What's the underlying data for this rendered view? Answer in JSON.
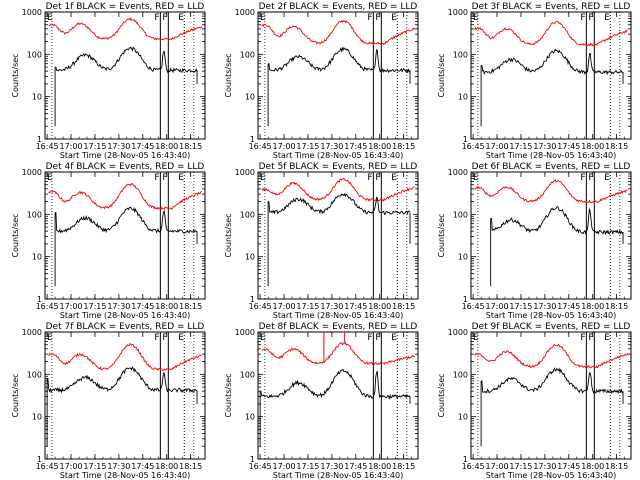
{
  "chart_data": [
    {
      "type": "line",
      "title": "Det 1f BLACK = Events, RED = LLD",
      "xlabel": "Start Time (28-Nov-05 16:43:40)",
      "ylabel": "Counts/sec",
      "yscale": "log",
      "ylim": [
        1,
        1000
      ],
      "ytick_labels": [
        "1",
        "10",
        "100",
        "1000"
      ],
      "xlim": [
        "16:43:40",
        "18:24:00"
      ],
      "xtick_labels": [
        "16:45",
        "17:00",
        "17:15",
        "17:30",
        "17:45",
        "18:00",
        "18:15"
      ],
      "series_colors": [
        "#000000",
        "#ff0000"
      ],
      "grid": false,
      "markers": [
        {
          "label": "F",
          "time": "17:56",
          "style": "solid"
        },
        {
          "label": "F",
          "time": "18:01",
          "style": "solid"
        },
        {
          "label": "E",
          "time": "18:11",
          "style": "dotted"
        }
      ],
      "dotted_lines": [
        "16:48",
        "18:17"
      ],
      "events_start": "16:50",
      "events_end": "18:19",
      "events": {
        "base": 62,
        "baseline": 42,
        "hump1": [
          17.15,
          45
        ],
        "hump2": [
          17.62,
          65
        ],
        "spike": [
          17.97,
          80
        ],
        "start": 50
      },
      "lld": {
        "base": 260,
        "baseline": 230,
        "peak_start": 500,
        "hump1": [
          17.1,
          250
        ],
        "hump2": [
          17.62,
          300
        ],
        "end_rise": 400
      }
    },
    {
      "type": "line",
      "title": "Det 2f BLACK = Events, RED = LLD",
      "xlabel": "Start Time (28-Nov-05 16:43:40)",
      "ylabel": "Counts/sec",
      "yscale": "log",
      "ylim": [
        1,
        1000
      ],
      "ytick_labels": [
        "1",
        "10",
        "100",
        "1000"
      ],
      "xlim": [
        "16:43:40",
        "18:24:00"
      ],
      "xtick_labels": [
        "16:45",
        "17:00",
        "17:15",
        "17:30",
        "17:45",
        "18:00",
        "18:15"
      ],
      "series_colors": [
        "#000000",
        "#ff0000"
      ],
      "grid": false,
      "markers": [
        {
          "label": "F",
          "time": "17:56",
          "style": "solid"
        },
        {
          "label": "F",
          "time": "18:01",
          "style": "solid"
        },
        {
          "label": "E",
          "time": "18:11",
          "style": "dotted"
        }
      ],
      "dotted_lines": [
        "16:48",
        "18:17"
      ],
      "events_start": "16:50",
      "events_end": "18:19",
      "events": {
        "base": 52,
        "baseline": 42,
        "hump1": [
          17.15,
          38
        ],
        "hump2": [
          17.62,
          60
        ],
        "spike": [
          17.97,
          90
        ],
        "start": 60
      },
      "lld": {
        "base": 200,
        "baseline": 180,
        "peak_start": 500,
        "hump1": [
          17.1,
          230
        ],
        "hump2": [
          17.62,
          290
        ],
        "end_rise": 360
      }
    },
    {
      "type": "line",
      "title": "Det 3f BLACK = Events, RED = LLD",
      "xlabel": "Start Time (28-Nov-05 16:43:40)",
      "ylabel": "Counts/sec",
      "yscale": "log",
      "ylim": [
        1,
        1000
      ],
      "ytick_labels": [
        "1",
        "10",
        "100",
        "1000"
      ],
      "xlim": [
        "16:43:40",
        "18:24:00"
      ],
      "xtick_labels": [
        "16:45",
        "17:00",
        "17:15",
        "17:30",
        "17:45",
        "18:00",
        "18:15"
      ],
      "series_colors": [
        "#000000",
        "#ff0000"
      ],
      "grid": false,
      "markers": [
        {
          "label": "F",
          "time": "17:56",
          "style": "solid"
        },
        {
          "label": "F",
          "time": "18:01",
          "style": "solid"
        },
        {
          "label": "E",
          "time": "18:11",
          "style": "dotted"
        }
      ],
      "dotted_lines": [
        "16:48",
        "18:17"
      ],
      "events_start": "16:50",
      "events_end": "18:19",
      "events": {
        "base": 50,
        "baseline": 38,
        "hump1": [
          17.15,
          32
        ],
        "hump2": [
          17.62,
          55
        ],
        "spike": [
          17.97,
          65
        ],
        "start": 55
      },
      "lld": {
        "base": 200,
        "baseline": 170,
        "peak_start": 420,
        "hump1": [
          17.1,
          200
        ],
        "hump2": [
          17.62,
          270
        ],
        "end_rise": 320
      }
    },
    {
      "type": "line",
      "title": "Det 4f BLACK = Events, RED = LLD",
      "xlabel": "Start Time (28-Nov-05 16:43:40)",
      "ylabel": "Counts/sec",
      "yscale": "log",
      "ylim": [
        1,
        1000
      ],
      "ytick_labels": [
        "1",
        "10",
        "100",
        "1000"
      ],
      "xlim": [
        "16:43:40",
        "18:24:00"
      ],
      "xtick_labels": [
        "16:45",
        "17:00",
        "17:15",
        "17:30",
        "17:45",
        "18:00",
        "18:15"
      ],
      "series_colors": [
        "#000000",
        "#ff0000"
      ],
      "grid": false,
      "markers": [
        {
          "label": "F",
          "time": "17:56",
          "style": "solid"
        },
        {
          "label": "F",
          "time": "18:01",
          "style": "solid"
        },
        {
          "label": "E",
          "time": "18:11",
          "style": "dotted"
        }
      ],
      "dotted_lines": [
        "16:48",
        "18:17"
      ],
      "events_start": "16:50",
      "events_end": "18:19",
      "events": {
        "base": 50,
        "baseline": 40,
        "hump1": [
          17.15,
          35
        ],
        "hump2": [
          17.62,
          65
        ],
        "spike": [
          17.97,
          80
        ],
        "start": 110
      },
      "lld": {
        "base": 160,
        "baseline": 140,
        "peak_start": 350,
        "hump1": [
          17.1,
          160
        ],
        "hump2": [
          17.62,
          250
        ],
        "end_rise": 290
      }
    },
    {
      "type": "line",
      "title": "Det 5f BLACK = Events, RED = LLD",
      "xlabel": "Start Time (28-Nov-05 16:43:40)",
      "ylabel": "Counts/sec",
      "yscale": "log",
      "ylim": [
        1,
        1000
      ],
      "ytick_labels": [
        "1",
        "10",
        "100",
        "1000"
      ],
      "xlim": [
        "16:43:40",
        "18:24:00"
      ],
      "xtick_labels": [
        "16:45",
        "17:00",
        "17:15",
        "17:30",
        "17:45",
        "18:00",
        "18:15"
      ],
      "series_colors": [
        "#000000",
        "#ff0000"
      ],
      "grid": false,
      "markers": [
        {
          "label": "F",
          "time": "17:56",
          "style": "solid"
        },
        {
          "label": "F",
          "time": "18:01",
          "style": "solid"
        },
        {
          "label": "E",
          "time": "18:11",
          "style": "dotted"
        }
      ],
      "dotted_lines": [
        "16:48",
        "18:17"
      ],
      "events_start": "16:50",
      "events_end": "18:19",
      "events": {
        "base": 180,
        "baseline": 110,
        "hump1": [
          17.15,
          100
        ],
        "hump2": [
          17.62,
          130
        ],
        "spike": [
          17.97,
          140
        ],
        "start": 200
      },
      "lld": {
        "base": 280,
        "baseline": 220,
        "peak_start": 390,
        "hump1": [
          17.1,
          270
        ],
        "hump2": [
          17.62,
          300
        ],
        "end_rise": 390
      }
    },
    {
      "type": "line",
      "title": "Det 6f BLACK = Events, RED = LLD",
      "xlabel": "Start Time (28-Nov-05 16:43:40)",
      "ylabel": "Counts/sec",
      "yscale": "log",
      "ylim": [
        1,
        1000
      ],
      "ytick_labels": [
        "1",
        "10",
        "100",
        "1000"
      ],
      "xlim": [
        "16:43:40",
        "18:24:00"
      ],
      "xtick_labels": [
        "16:45",
        "17:00",
        "17:15",
        "17:30",
        "17:45",
        "18:00",
        "18:15"
      ],
      "series_colors": [
        "#000000",
        "#ff0000"
      ],
      "grid": false,
      "markers": [
        {
          "label": "F",
          "time": "17:56",
          "style": "solid"
        },
        {
          "label": "F",
          "time": "18:01",
          "style": "solid"
        },
        {
          "label": "E",
          "time": "18:11",
          "style": "dotted"
        }
      ],
      "dotted_lines": [
        "16:48",
        "18:17"
      ],
      "events_start": "16:56",
      "events_end": "18:19",
      "events": {
        "base": 60,
        "baseline": 38,
        "hump1": [
          17.15,
          30
        ],
        "hump2": [
          17.62,
          70
        ],
        "spike": [
          17.97,
          90
        ],
        "start": 80
      },
      "lld": {
        "base": 230,
        "baseline": 200,
        "peak_start": 430,
        "hump1": [
          17.1,
          200
        ],
        "hump2": [
          17.62,
          280
        ],
        "end_rise": 330
      }
    },
    {
      "type": "line",
      "title": "Det 7f BLACK = Events, RED = LLD",
      "xlabel": "Start Time (28-Nov-05 16:43:40)",
      "ylabel": "Counts/sec",
      "yscale": "log",
      "ylim": [
        1,
        1000
      ],
      "ytick_labels": [
        "1",
        "10",
        "100",
        "1000"
      ],
      "xlim": [
        "16:43:40",
        "18:24:00"
      ],
      "xtick_labels": [
        "16:45",
        "17:00",
        "17:15",
        "17:30",
        "17:45",
        "18:00",
        "18:15"
      ],
      "series_colors": [
        "#000000",
        "#ff0000"
      ],
      "grid": false,
      "markers": [
        {
          "label": "F",
          "time": "17:56",
          "style": "solid"
        },
        {
          "label": "F",
          "time": "18:01",
          "style": "solid"
        },
        {
          "label": "E",
          "time": "18:11",
          "style": "dotted"
        }
      ],
      "dotted_lines": [
        "16:48",
        "18:17"
      ],
      "events_start": "16:45",
      "events_end": "18:19",
      "events": {
        "base": 50,
        "baseline": 42,
        "hump1": [
          17.15,
          35
        ],
        "hump2": [
          17.62,
          65
        ],
        "spike": [
          17.97,
          70
        ],
        "start": 80
      },
      "lld": {
        "base": 180,
        "baseline": 130,
        "peak_start": 300,
        "hump1": [
          17.1,
          140
        ],
        "hump2": [
          17.62,
          250
        ],
        "end_rise": 250
      }
    },
    {
      "type": "line",
      "title": "Det 8f BLACK = Events, RED = LLD",
      "xlabel": "Start Time (28-Nov-05 16:43:40)",
      "ylabel": "Counts/sec",
      "yscale": "log",
      "ylim": [
        1,
        1000
      ],
      "ytick_labels": [
        "1",
        "10",
        "100",
        "1000"
      ],
      "xlim": [
        "16:43:40",
        "18:24:00"
      ],
      "xtick_labels": [
        "16:45",
        "17:00",
        "17:15",
        "17:30",
        "17:45",
        "18:00",
        "18:15"
      ],
      "series_colors": [
        "#000000",
        "#ff0000"
      ],
      "grid": false,
      "markers": [
        {
          "label": "F",
          "time": "17:56",
          "style": "solid"
        },
        {
          "label": "F",
          "time": "18:01",
          "style": "solid"
        },
        {
          "label": "E",
          "time": "18:11",
          "style": "dotted"
        }
      ],
      "dotted_lines": [
        "16:48",
        "18:17"
      ],
      "events_start": "16:45",
      "events_end": "18:19",
      "events": {
        "base": 40,
        "baseline": 30,
        "hump1": [
          17.15,
          28
        ],
        "hump2": [
          17.62,
          60
        ],
        "spike": [
          17.97,
          85
        ],
        "start": 40
      },
      "lld": {
        "base": 280,
        "baseline": 180,
        "peak_start": 390,
        "hump1": [
          17.1,
          180
        ],
        "hump2": [
          17.62,
          240
        ],
        "end_rise": 250
      },
      "lld_spikes": [
        {
          "time": "17:25",
          "value": 1000
        },
        {
          "time": "17:38",
          "value": 1000
        }
      ]
    },
    {
      "type": "line",
      "title": "Det 9f BLACK = Events, RED = LLD",
      "xlabel": "Start Time (28-Nov-05 16:43:40)",
      "ylabel": "Counts/sec",
      "yscale": "log",
      "ylim": [
        1,
        1000
      ],
      "ytick_labels": [
        "1",
        "10",
        "100",
        "1000"
      ],
      "xlim": [
        "16:43:40",
        "18:24:00"
      ],
      "xtick_labels": [
        "16:45",
        "17:00",
        "17:15",
        "17:30",
        "17:45",
        "18:00",
        "18:15"
      ],
      "series_colors": [
        "#000000",
        "#ff0000"
      ],
      "grid": false,
      "markers": [
        {
          "label": "F",
          "time": "17:56",
          "style": "solid"
        },
        {
          "label": "F",
          "time": "18:01",
          "style": "solid"
        },
        {
          "label": "E",
          "time": "18:11",
          "style": "dotted"
        }
      ],
      "dotted_lines": [
        "16:48",
        "18:17"
      ],
      "events_start": "16:50",
      "events_end": "18:19",
      "events": {
        "base": 55,
        "baseline": 40,
        "hump1": [
          17.15,
          32
        ],
        "hump2": [
          17.62,
          60
        ],
        "spike": [
          17.97,
          80
        ],
        "start": 70
      },
      "lld": {
        "base": 200,
        "baseline": 150,
        "peak_start": 300,
        "hump1": [
          17.1,
          160
        ],
        "hump2": [
          17.62,
          230
        ],
        "end_rise": 270
      }
    }
  ]
}
